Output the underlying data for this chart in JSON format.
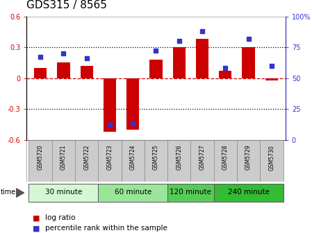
{
  "title": "GDS315 / 8565",
  "samples": [
    "GSM5720",
    "GSM5721",
    "GSM5722",
    "GSM5723",
    "GSM5724",
    "GSM5725",
    "GSM5726",
    "GSM5727",
    "GSM5728",
    "GSM5729",
    "GSM5730"
  ],
  "log_ratio": [
    0.1,
    0.15,
    0.12,
    -0.52,
    -0.5,
    0.18,
    0.3,
    0.38,
    0.07,
    0.3,
    -0.02
  ],
  "percentile": [
    67,
    70,
    66,
    12,
    13,
    72,
    80,
    88,
    58,
    82,
    60
  ],
  "ylim_left": [
    -0.6,
    0.6
  ],
  "ylim_right": [
    0,
    100
  ],
  "yticks_left": [
    -0.6,
    -0.3,
    0.0,
    0.3,
    0.6
  ],
  "yticks_right": [
    0,
    25,
    50,
    75,
    100
  ],
  "ytick_labels_left": [
    "-0.6",
    "-0.3",
    "0",
    "0.3",
    "0.6"
  ],
  "ytick_labels_right": [
    "0",
    "25",
    "50",
    "75",
    "100%"
  ],
  "hlines_dotted": [
    0.3,
    -0.3
  ],
  "hline_dashed": 0.0,
  "bar_color": "#cc0000",
  "dot_color": "#3333cc",
  "groups": [
    {
      "label": "30 minute",
      "start": 0,
      "end": 2,
      "color": "#d4f7d4"
    },
    {
      "label": "60 minute",
      "start": 3,
      "end": 5,
      "color": "#99e699"
    },
    {
      "label": "120 minute",
      "start": 6,
      "end": 7,
      "color": "#55cc55"
    },
    {
      "label": "240 minute",
      "start": 8,
      "end": 10,
      "color": "#33bb33"
    }
  ],
  "bg_color": "#ffffff",
  "legend_log_ratio_label": "log ratio",
  "legend_percentile_label": "percentile rank within the sample",
  "time_label": "time",
  "title_fontsize": 11,
  "tick_fontsize": 7,
  "group_fontsize": 7.5,
  "legend_fontsize": 7.5,
  "sample_fontsize": 5.5
}
